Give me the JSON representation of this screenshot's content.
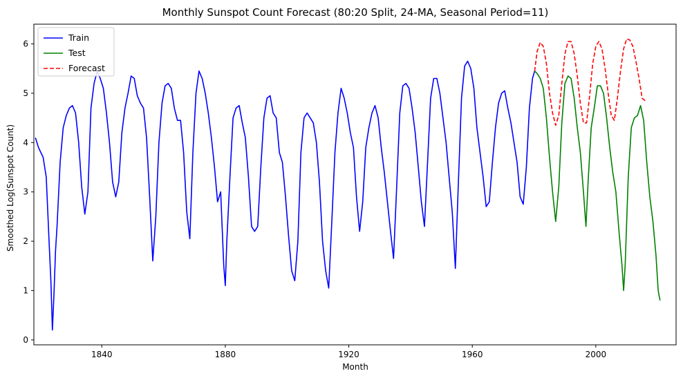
{
  "chart_data": {
    "type": "line",
    "title": "Monthly Sunspot Count Forecast (80:20 Split, 24-MA, Seasonal Period=11)",
    "xlabel": "Month",
    "ylabel": "Smoothed Log(Sunspot Count)",
    "xlim": [
      1818,
      2026
    ],
    "ylim": [
      -0.1,
      6.4
    ],
    "xticks": [
      1840,
      1880,
      1920,
      1960,
      2000
    ],
    "yticks": [
      0,
      1,
      2,
      3,
      4,
      5,
      6
    ],
    "grid": false,
    "legend_position": "upper-left",
    "series": [
      {
        "name": "Train",
        "color": "#0000ff",
        "style": "solid",
        "points": [
          [
            1818.5,
            4.1
          ],
          [
            1819.5,
            3.9
          ],
          [
            1821,
            3.7
          ],
          [
            1822,
            3.3
          ],
          [
            1822.5,
            2.6
          ],
          [
            1823,
            1.9
          ],
          [
            1823.5,
            1.2
          ],
          [
            1824,
            0.2
          ],
          [
            1824.5,
            0.9
          ],
          [
            1825,
            1.8
          ],
          [
            1825.5,
            2.3
          ],
          [
            1826.5,
            3.6
          ],
          [
            1827.5,
            4.3
          ],
          [
            1828.5,
            4.55
          ],
          [
            1829.5,
            4.7
          ],
          [
            1830.5,
            4.75
          ],
          [
            1831.5,
            4.6
          ],
          [
            1832.5,
            4.0
          ],
          [
            1833.5,
            3.1
          ],
          [
            1834.5,
            2.55
          ],
          [
            1835.5,
            3.0
          ],
          [
            1836.5,
            4.7
          ],
          [
            1837.5,
            5.2
          ],
          [
            1838.5,
            5.45
          ],
          [
            1839.5,
            5.3
          ],
          [
            1840.5,
            5.1
          ],
          [
            1841.5,
            4.6
          ],
          [
            1842.5,
            4.0
          ],
          [
            1843.5,
            3.2
          ],
          [
            1844.5,
            2.9
          ],
          [
            1845.5,
            3.2
          ],
          [
            1846.5,
            4.2
          ],
          [
            1847.5,
            4.7
          ],
          [
            1848.5,
            5.0
          ],
          [
            1849.5,
            5.35
          ],
          [
            1850.5,
            5.3
          ],
          [
            1851.5,
            4.95
          ],
          [
            1852.5,
            4.8
          ],
          [
            1853.5,
            4.7
          ],
          [
            1854.5,
            4.1
          ],
          [
            1855.5,
            2.9
          ],
          [
            1856.5,
            1.6
          ],
          [
            1857.5,
            2.5
          ],
          [
            1858.5,
            4.0
          ],
          [
            1859.5,
            4.8
          ],
          [
            1860.5,
            5.15
          ],
          [
            1861.5,
            5.2
          ],
          [
            1862.5,
            5.1
          ],
          [
            1863.5,
            4.7
          ],
          [
            1864.5,
            4.45
          ],
          [
            1865.5,
            4.45
          ],
          [
            1866.5,
            3.8
          ],
          [
            1867.5,
            2.6
          ],
          [
            1868.5,
            2.05
          ],
          [
            1869.5,
            3.8
          ],
          [
            1870.5,
            5.0
          ],
          [
            1871.5,
            5.45
          ],
          [
            1872.5,
            5.3
          ],
          [
            1873.5,
            5.0
          ],
          [
            1874.5,
            4.6
          ],
          [
            1875.5,
            4.1
          ],
          [
            1876.5,
            3.5
          ],
          [
            1877.5,
            2.8
          ],
          [
            1878.5,
            3.0
          ],
          [
            1879.5,
            1.5
          ],
          [
            1880,
            1.1
          ],
          [
            1880.5,
            2.0
          ],
          [
            1881.5,
            3.3
          ],
          [
            1882.5,
            4.5
          ],
          [
            1883.5,
            4.7
          ],
          [
            1884.5,
            4.75
          ],
          [
            1885.5,
            4.4
          ],
          [
            1886.5,
            4.1
          ],
          [
            1887.5,
            3.3
          ],
          [
            1888.5,
            2.3
          ],
          [
            1889.5,
            2.2
          ],
          [
            1890.5,
            2.3
          ],
          [
            1891.5,
            3.5
          ],
          [
            1892.5,
            4.5
          ],
          [
            1893.5,
            4.9
          ],
          [
            1894.5,
            4.95
          ],
          [
            1895.5,
            4.6
          ],
          [
            1896.5,
            4.5
          ],
          [
            1897.5,
            3.8
          ],
          [
            1898.5,
            3.6
          ],
          [
            1899.5,
            2.9
          ],
          [
            1900.5,
            2.1
          ],
          [
            1901.5,
            1.4
          ],
          [
            1902.5,
            1.2
          ],
          [
            1903.5,
            2.0
          ],
          [
            1904.5,
            3.8
          ],
          [
            1905.5,
            4.5
          ],
          [
            1906.5,
            4.6
          ],
          [
            1907.5,
            4.5
          ],
          [
            1908.5,
            4.4
          ],
          [
            1909.5,
            4.0
          ],
          [
            1910.5,
            3.2
          ],
          [
            1911.5,
            2.0
          ],
          [
            1912.5,
            1.4
          ],
          [
            1913.5,
            1.05
          ],
          [
            1914.5,
            2.4
          ],
          [
            1915.5,
            3.8
          ],
          [
            1916.5,
            4.6
          ],
          [
            1917.5,
            5.1
          ],
          [
            1918.5,
            4.9
          ],
          [
            1919.5,
            4.6
          ],
          [
            1920.5,
            4.2
          ],
          [
            1921.5,
            3.9
          ],
          [
            1922.5,
            2.9
          ],
          [
            1923.5,
            2.2
          ],
          [
            1924.5,
            2.8
          ],
          [
            1925.5,
            3.9
          ],
          [
            1926.5,
            4.3
          ],
          [
            1927.5,
            4.6
          ],
          [
            1928.5,
            4.75
          ],
          [
            1929.5,
            4.5
          ],
          [
            1930.5,
            3.9
          ],
          [
            1931.5,
            3.4
          ],
          [
            1932.5,
            2.8
          ],
          [
            1933.5,
            2.2
          ],
          [
            1934.5,
            1.65
          ],
          [
            1935.5,
            3.1
          ],
          [
            1936.5,
            4.6
          ],
          [
            1937.5,
            5.15
          ],
          [
            1938.5,
            5.2
          ],
          [
            1939.5,
            5.1
          ],
          [
            1940.5,
            4.7
          ],
          [
            1941.5,
            4.2
          ],
          [
            1942.5,
            3.5
          ],
          [
            1943.5,
            2.8
          ],
          [
            1944.5,
            2.3
          ],
          [
            1945.5,
            3.6
          ],
          [
            1946.5,
            4.9
          ],
          [
            1947.5,
            5.3
          ],
          [
            1948.5,
            5.3
          ],
          [
            1949.5,
            5.0
          ],
          [
            1950.5,
            4.5
          ],
          [
            1951.5,
            4.0
          ],
          [
            1952.5,
            3.3
          ],
          [
            1953.5,
            2.6
          ],
          [
            1954.5,
            1.45
          ],
          [
            1955.5,
            3.2
          ],
          [
            1956.5,
            4.9
          ],
          [
            1957.5,
            5.55
          ],
          [
            1958.5,
            5.65
          ],
          [
            1959.5,
            5.5
          ],
          [
            1960.5,
            5.1
          ],
          [
            1961.5,
            4.3
          ],
          [
            1962.5,
            3.8
          ],
          [
            1963.5,
            3.3
          ],
          [
            1964.5,
            2.7
          ],
          [
            1965.5,
            2.8
          ],
          [
            1966.5,
            3.6
          ],
          [
            1967.5,
            4.3
          ],
          [
            1968.5,
            4.8
          ],
          [
            1969.5,
            5.0
          ],
          [
            1970.5,
            5.05
          ],
          [
            1971.5,
            4.7
          ],
          [
            1972.5,
            4.4
          ],
          [
            1973.5,
            4.0
          ],
          [
            1974.5,
            3.6
          ],
          [
            1975.5,
            2.9
          ],
          [
            1976.5,
            2.75
          ],
          [
            1977.5,
            3.5
          ],
          [
            1978.5,
            4.7
          ],
          [
            1979.5,
            5.3
          ],
          [
            1980.2,
            5.45
          ]
        ]
      },
      {
        "name": "Test",
        "color": "#008000",
        "style": "solid",
        "points": [
          [
            1980.2,
            5.45
          ],
          [
            1981,
            5.4
          ],
          [
            1982,
            5.3
          ],
          [
            1983,
            5.1
          ],
          [
            1984,
            4.5
          ],
          [
            1985,
            3.7
          ],
          [
            1986,
            3.0
          ],
          [
            1987,
            2.4
          ],
          [
            1988,
            3.1
          ],
          [
            1989,
            4.4
          ],
          [
            1990,
            5.2
          ],
          [
            1991,
            5.35
          ],
          [
            1992,
            5.3
          ],
          [
            1993,
            4.9
          ],
          [
            1994,
            4.3
          ],
          [
            1995,
            3.8
          ],
          [
            1996,
            3.0
          ],
          [
            1996.8,
            2.3
          ],
          [
            1997.5,
            3.2
          ],
          [
            1998.5,
            4.3
          ],
          [
            1999.5,
            4.7
          ],
          [
            2000.5,
            5.15
          ],
          [
            2001.5,
            5.15
          ],
          [
            2002.5,
            5.0
          ],
          [
            2003.5,
            4.5
          ],
          [
            2004.5,
            3.9
          ],
          [
            2005.5,
            3.4
          ],
          [
            2006.5,
            3.0
          ],
          [
            2007.5,
            2.2
          ],
          [
            2008.5,
            1.5
          ],
          [
            2009,
            1.0
          ],
          [
            2009.5,
            1.5
          ],
          [
            2010.5,
            3.3
          ],
          [
            2011.5,
            4.3
          ],
          [
            2012.5,
            4.5
          ],
          [
            2013.5,
            4.55
          ],
          [
            2014.5,
            4.75
          ],
          [
            2015.5,
            4.45
          ],
          [
            2016.5,
            3.6
          ],
          [
            2017.5,
            2.9
          ],
          [
            2018.5,
            2.4
          ],
          [
            2019.5,
            1.7
          ],
          [
            2020.2,
            1.0
          ],
          [
            2020.8,
            0.8
          ]
        ]
      },
      {
        "name": "Forecast",
        "color": "#ff0000",
        "style": "dashed",
        "points": [
          [
            1980.2,
            5.45
          ],
          [
            1981,
            5.85
          ],
          [
            1982,
            6.03
          ],
          [
            1983,
            5.95
          ],
          [
            1984,
            5.6
          ],
          [
            1985,
            5.0
          ],
          [
            1986,
            4.6
          ],
          [
            1987,
            4.35
          ],
          [
            1988,
            4.55
          ],
          [
            1989,
            5.2
          ],
          [
            1990,
            5.8
          ],
          [
            1991,
            6.05
          ],
          [
            1992,
            6.05
          ],
          [
            1993,
            5.8
          ],
          [
            1994,
            5.35
          ],
          [
            1995,
            4.8
          ],
          [
            1996,
            4.4
          ],
          [
            1997,
            4.4
          ],
          [
            1998,
            4.95
          ],
          [
            1999,
            5.6
          ],
          [
            2000,
            5.95
          ],
          [
            2001,
            6.05
          ],
          [
            2002,
            5.9
          ],
          [
            2003,
            5.5
          ],
          [
            2004,
            5.0
          ],
          [
            2005,
            4.55
          ],
          [
            2006,
            4.45
          ],
          [
            2007,
            4.9
          ],
          [
            2008,
            5.45
          ],
          [
            2009,
            5.9
          ],
          [
            2010,
            6.1
          ],
          [
            2011,
            6.08
          ],
          [
            2012,
            5.95
          ],
          [
            2013,
            5.65
          ],
          [
            2014,
            5.3
          ],
          [
            2015,
            4.9
          ],
          [
            2016,
            4.85
          ]
        ]
      }
    ]
  }
}
